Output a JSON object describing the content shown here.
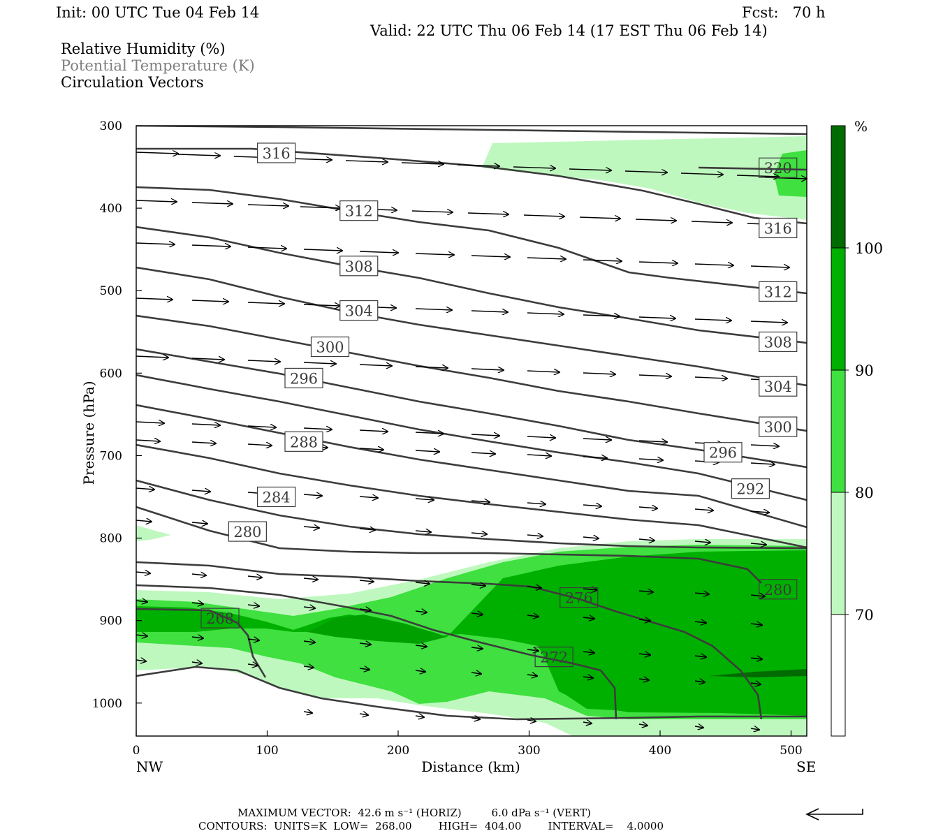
{
  "header": {
    "init": "Init: 00 UTC Tue 04 Feb 14",
    "fcst": "Fcst:   70 h",
    "valid": "Valid: 22 UTC Thu 06 Feb 14 (17 EST Thu 06 Feb 14)"
  },
  "legend": {
    "rh": "Relative Humidity (%)",
    "theta": "Potential Temperature (K)",
    "vectors": "Circulation Vectors"
  },
  "footer": {
    "line1": "MAXIMUM VECTOR:  42.6 m s⁻¹ (HORIZ)         6.0 dPa s⁻¹ (VERT)",
    "line2": "CONTOURS:  UNITS=K  LOW=  268.00        HIGH=  404.00        INTERVAL=    4.0000"
  },
  "colors": {
    "rh70": "#bff8bf",
    "rh80": "#3fe03f",
    "rh90": "#00b000",
    "rh100": "#006b00",
    "contour": "#3c3c3c"
  },
  "chart_data": {
    "type": "cross-section",
    "xlabel": "Distance (km)",
    "ylabel": "Pressure (hPa)",
    "xlim": [
      0,
      512
    ],
    "ylim": [
      1040,
      300
    ],
    "x_ticks": [
      "0",
      "100",
      "200",
      "300",
      "400",
      "500"
    ],
    "y_ticks": [
      "300",
      "400",
      "500",
      "600",
      "700",
      "800",
      "900",
      "1000"
    ],
    "x_end_labels": {
      "left": "NW",
      "right": "SE"
    },
    "colorbar": {
      "unit": "%",
      "levels": [
        "70",
        "80",
        "90",
        "100"
      ]
    },
    "contour_labels": [
      {
        "text": "316",
        "x": 107,
        "p": 333
      },
      {
        "text": "312",
        "x": 170,
        "p": 403
      },
      {
        "text": "308",
        "x": 170,
        "p": 470
      },
      {
        "text": "304",
        "x": 170,
        "p": 524
      },
      {
        "text": "300",
        "x": 148,
        "p": 568
      },
      {
        "text": "296",
        "x": 128,
        "p": 606
      },
      {
        "text": "288",
        "x": 128,
        "p": 683
      },
      {
        "text": "284",
        "x": 107,
        "p": 750
      },
      {
        "text": "280",
        "x": 85,
        "p": 792
      },
      {
        "text": "268",
        "x": 64,
        "p": 897
      },
      {
        "text": "276",
        "x": 338,
        "p": 872
      },
      {
        "text": "272",
        "x": 319,
        "p": 944
      },
      {
        "text": "320",
        "x": 490,
        "p": 351
      },
      {
        "text": "316",
        "x": 490,
        "p": 424
      },
      {
        "text": "312",
        "x": 490,
        "p": 501
      },
      {
        "text": "308",
        "x": 490,
        "p": 562
      },
      {
        "text": "304",
        "x": 490,
        "p": 616
      },
      {
        "text": "300",
        "x": 490,
        "p": 665
      },
      {
        "text": "296",
        "x": 448,
        "p": 696
      },
      {
        "text": "292",
        "x": 469,
        "p": 740
      },
      {
        "text": "280",
        "x": 490,
        "p": 862
      }
    ],
    "vector_scale_arrow": "left"
  }
}
